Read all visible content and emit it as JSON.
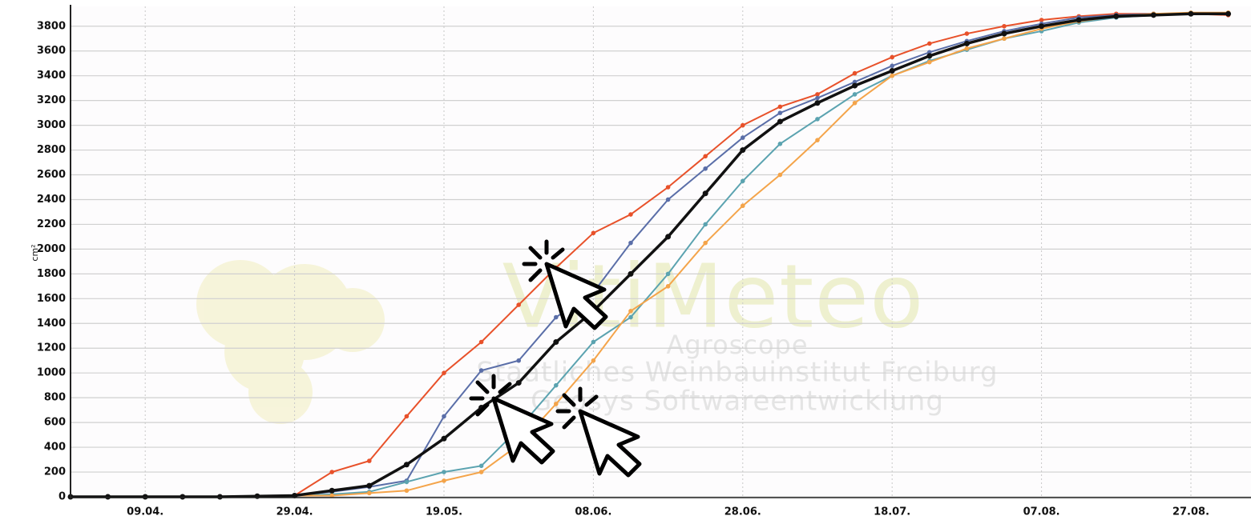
{
  "chart_data": {
    "type": "line",
    "y_label": "cm²",
    "watermark": [
      "VitiMeteo",
      "Agroscope",
      "Staatliches Weinbauinstitut Freiburg",
      "Geosys Softwareentwicklung"
    ],
    "categories": [
      null,
      null,
      "09.04.",
      null,
      null,
      null,
      "29.04.",
      null,
      null,
      null,
      "19.05.",
      null,
      null,
      null,
      "08.06.",
      null,
      null,
      null,
      "28.06.",
      null,
      null,
      null,
      "18.07.",
      null,
      null,
      null,
      "07.08.",
      null,
      null,
      null,
      "27.08.",
      null
    ],
    "series": [
      {
        "color": "#e8512a",
        "values": [
          0,
          0,
          0,
          0,
          0,
          5,
          10,
          200,
          290,
          650,
          1000,
          1250,
          1550,
          1850,
          2130,
          2280,
          2500,
          2750,
          3000,
          3150,
          3250,
          3420,
          3550,
          3660,
          3740,
          3800,
          3850,
          3880,
          3900,
          3900,
          3900,
          3890
        ]
      },
      {
        "color": "#5a6ea8",
        "values": [
          0,
          0,
          0,
          0,
          0,
          5,
          10,
          40,
          80,
          130,
          650,
          1020,
          1100,
          1450,
          1650,
          2050,
          2400,
          2650,
          2900,
          3100,
          3220,
          3350,
          3480,
          3590,
          3680,
          3760,
          3820,
          3870,
          3890,
          3900,
          3900,
          3900
        ]
      },
      {
        "color": "#5ba3b0",
        "values": [
          0,
          0,
          0,
          0,
          0,
          5,
          10,
          20,
          40,
          120,
          200,
          250,
          550,
          900,
          1250,
          1450,
          1800,
          2200,
          2550,
          2850,
          3050,
          3250,
          3400,
          3520,
          3610,
          3700,
          3760,
          3830,
          3870,
          3890,
          3900,
          3900
        ]
      },
      {
        "color": "#f4a44a",
        "values": [
          0,
          0,
          0,
          0,
          0,
          5,
          10,
          10,
          30,
          50,
          130,
          200,
          420,
          750,
          1100,
          1500,
          1700,
          2050,
          2350,
          2600,
          2880,
          3180,
          3400,
          3510,
          3620,
          3700,
          3780,
          3840,
          3880,
          3900,
          3910,
          3910
        ]
      },
      {
        "color": "#111111",
        "values": [
          0,
          0,
          0,
          0,
          0,
          5,
          10,
          50,
          90,
          260,
          470,
          720,
          920,
          1250,
          1500,
          1800,
          2100,
          2450,
          2800,
          3030,
          3180,
          3320,
          3440,
          3560,
          3660,
          3740,
          3800,
          3850,
          3880,
          3890,
          3900,
          3900
        ]
      }
    ],
    "ylim": [
      0,
      3960
    ],
    "yticks": [
      0,
      200,
      400,
      600,
      800,
      1000,
      1200,
      1400,
      1600,
      1800,
      2000,
      2200,
      2400,
      2600,
      2800,
      3000,
      3200,
      3400,
      3600,
      3800
    ],
    "grid": true
  }
}
